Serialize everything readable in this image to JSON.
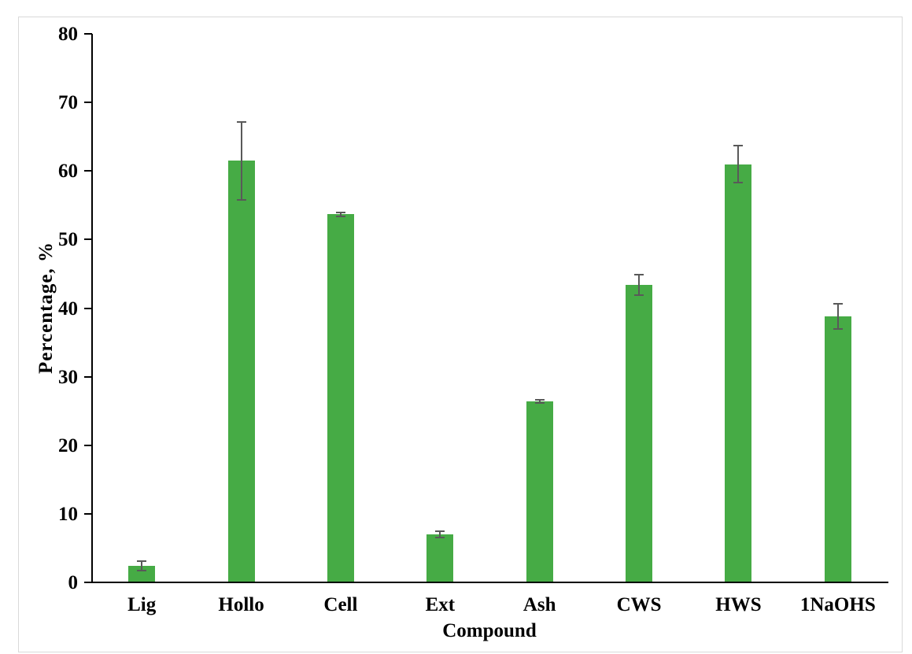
{
  "chart_data": {
    "type": "bar",
    "title": "",
    "xlabel": "Compound",
    "ylabel": "Percentage, %",
    "categories": [
      "Lig",
      "Hollo",
      "Cell",
      "Ext",
      "Ash",
      "CWS",
      "HWS",
      "1NaOHS"
    ],
    "values": [
      2.4,
      61.5,
      53.7,
      7.0,
      26.4,
      43.4,
      61.0,
      38.8
    ],
    "errors": [
      0.7,
      5.7,
      0.3,
      0.5,
      0.25,
      1.5,
      2.7,
      1.8
    ],
    "ylim": [
      0,
      80
    ],
    "yticks": [
      0,
      10,
      20,
      30,
      40,
      50,
      60,
      70,
      80
    ],
    "grid": false,
    "legend": "none",
    "bar_color": "#46ab45",
    "error_color": "#595959",
    "axis_color": "#000000",
    "frame_color": "#d9d9d9",
    "text_color": "#000000"
  }
}
